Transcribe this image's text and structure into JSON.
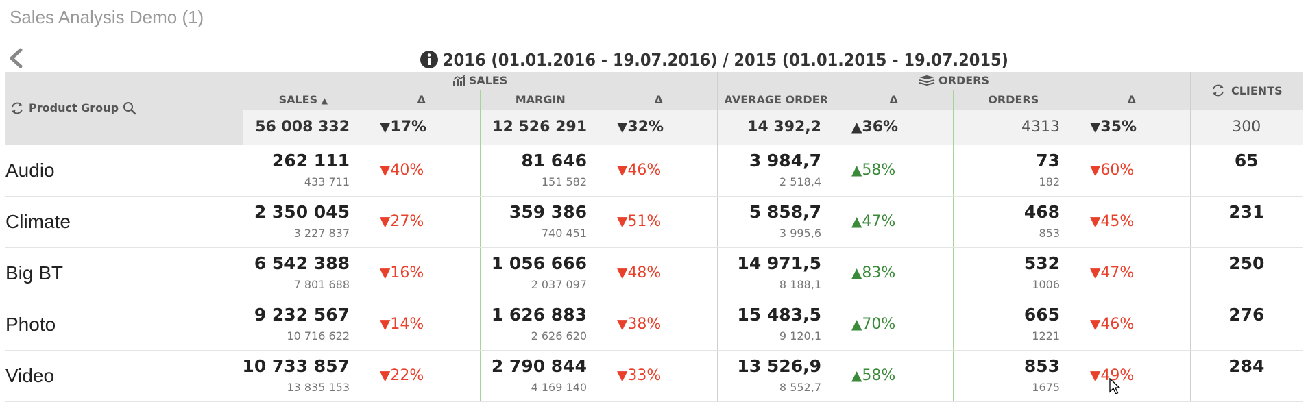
{
  "app": {
    "title": "Sales Analysis Demo (1)"
  },
  "period": {
    "label": "2016 (01.01.2016 - 19.07.2016) / 2015 (01.01.2015 - 19.07.2015)"
  },
  "table": {
    "dimension_header": "Product Group",
    "groups": {
      "sales": "SALES",
      "orders": "ORDERS",
      "clients": "CLIENTS"
    },
    "columns": {
      "sales": "SALES",
      "delta": "Δ",
      "margin": "MARGIN",
      "average_order": "AVERAGE ORDER",
      "orders": "ORDERS"
    },
    "totals": {
      "sales": "56 008 332",
      "sales_delta": "17%",
      "sales_dir": "down",
      "margin": "12 526 291",
      "margin_delta": "32%",
      "margin_dir": "down",
      "avg": "14 392,2",
      "avg_delta": "36%",
      "avg_dir": "up",
      "orders": "4313",
      "orders_delta": "35%",
      "orders_dir": "down",
      "clients": "300"
    },
    "rows": [
      {
        "name": "Audio",
        "sales": "262 111",
        "sales_prev": "433 711",
        "sales_delta": "40%",
        "sales_dir": "down",
        "margin": "81 646",
        "margin_prev": "151 582",
        "margin_delta": "46%",
        "margin_dir": "down",
        "avg": "3 984,7",
        "avg_prev": "2 518,4",
        "avg_delta": "58%",
        "avg_dir": "up",
        "orders": "73",
        "orders_prev": "182",
        "orders_delta": "60%",
        "orders_dir": "down",
        "clients": "65"
      },
      {
        "name": "Climate",
        "sales": "2 350 045",
        "sales_prev": "3 227 837",
        "sales_delta": "27%",
        "sales_dir": "down",
        "margin": "359 386",
        "margin_prev": "740 451",
        "margin_delta": "51%",
        "margin_dir": "down",
        "avg": "5 858,7",
        "avg_prev": "3 995,6",
        "avg_delta": "47%",
        "avg_dir": "up",
        "orders": "468",
        "orders_prev": "853",
        "orders_delta": "45%",
        "orders_dir": "down",
        "clients": "231"
      },
      {
        "name": "Big BT",
        "sales": "6 542 388",
        "sales_prev": "7 801 688",
        "sales_delta": "16%",
        "sales_dir": "down",
        "margin": "1 056 666",
        "margin_prev": "2 037 097",
        "margin_delta": "48%",
        "margin_dir": "down",
        "avg": "14 971,5",
        "avg_prev": "8 188,1",
        "avg_delta": "83%",
        "avg_dir": "up",
        "orders": "532",
        "orders_prev": "1006",
        "orders_delta": "47%",
        "orders_dir": "down",
        "clients": "250"
      },
      {
        "name": "Photo",
        "sales": "9 232 567",
        "sales_prev": "10 716 622",
        "sales_delta": "14%",
        "sales_dir": "down",
        "margin": "1 626 883",
        "margin_prev": "2 626 620",
        "margin_delta": "38%",
        "margin_dir": "down",
        "avg": "15 483,5",
        "avg_prev": "9 120,1",
        "avg_delta": "70%",
        "avg_dir": "up",
        "orders": "665",
        "orders_prev": "1221",
        "orders_delta": "46%",
        "orders_dir": "down",
        "clients": "276"
      },
      {
        "name": "Video",
        "sales": "10 733 857",
        "sales_prev": "13 835 153",
        "sales_delta": "22%",
        "sales_dir": "down",
        "margin": "2 790 844",
        "margin_prev": "4 169 140",
        "margin_delta": "33%",
        "margin_dir": "down",
        "avg": "13 526,9",
        "avg_prev": "8 552,7",
        "avg_delta": "58%",
        "avg_dir": "up",
        "orders": "853",
        "orders_prev": "1675",
        "orders_delta": "49%",
        "orders_dir": "down",
        "clients": "284"
      }
    ]
  },
  "colors": {
    "down": "#e8402a",
    "up": "#3a8a3a",
    "header_bg": "#e2e2e2",
    "total_bg": "#f2f2f2"
  },
  "icons": {
    "back": "chevron-left-icon",
    "info": "info-icon",
    "cycle": "cycle-icon",
    "search": "search-icon",
    "sales_chart": "chart-icon",
    "orders_stack": "stack-icon",
    "sort": "sort-ascending-icon"
  }
}
